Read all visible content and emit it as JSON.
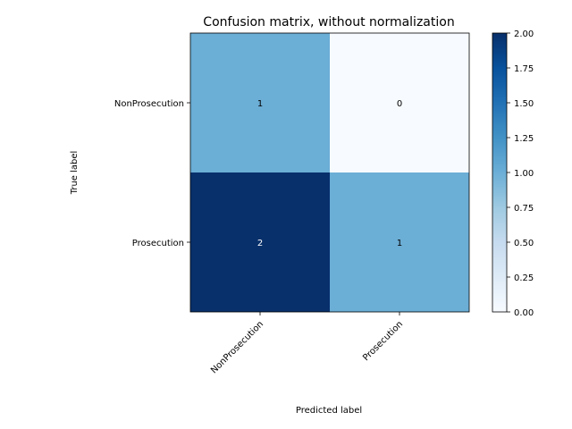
{
  "chart_data": {
    "type": "heatmap",
    "title": "Confusion matrix, without normalization",
    "xlabel": "Predicted label",
    "ylabel": "True label",
    "x_categories": [
      "NonProsecution",
      "Prosecution"
    ],
    "y_categories": [
      "NonProsecution",
      "Prosecution"
    ],
    "values": [
      [
        1,
        0
      ],
      [
        2,
        1
      ]
    ],
    "value_labels": [
      [
        "1",
        "0"
      ],
      [
        "2",
        "1"
      ]
    ],
    "colormap": "Blues",
    "color_range": [
      0,
      2
    ],
    "colorbar_ticks": [
      "0.00",
      "0.25",
      "0.50",
      "0.75",
      "1.00",
      "1.25",
      "1.50",
      "1.75",
      "2.00"
    ],
    "colors": {
      "low": "#f7fbff",
      "mid": "#6baed6",
      "high": "#08306b",
      "text_dark": "#000000",
      "text_light": "#ffffff"
    }
  }
}
